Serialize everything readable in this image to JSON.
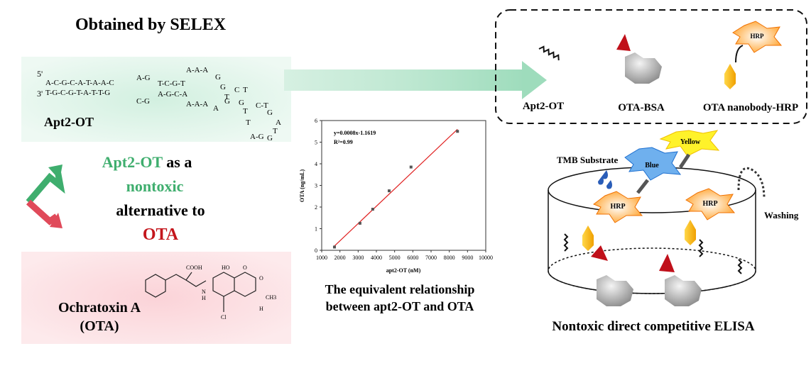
{
  "left": {
    "title": "Obtained by SELEX",
    "aptamer": {
      "five_prime": "5'",
      "three_prime": "3'",
      "fragments": [
        "A-C-G-C-A-T-A-A-C",
        "T-G-C-G-T-A-T-T-G",
        "A-G",
        "T-C-G-T",
        "C-G",
        "A-G-C-A",
        "A-A-A",
        "G",
        "G",
        "T",
        "C",
        "T",
        "A-A-A",
        "A",
        "G",
        "G",
        "C-T",
        "T",
        "T",
        "A",
        "G",
        "T",
        "A-G",
        "G"
      ],
      "label": "Apt2-OT"
    },
    "statement": [
      "Apt2-OT",
      "as a",
      "nontoxic",
      "alternative to",
      "OTA"
    ],
    "toxin": {
      "name": "Ochratoxin A",
      "abbr": "(OTA)",
      "atoms": [
        "COOH",
        "HO",
        "O",
        "O",
        "N",
        "H",
        "Cl",
        "CH3",
        "H"
      ]
    }
  },
  "plot": {
    "equation": "y=0.0008x-1.1619",
    "r2": "R²=0.99",
    "xlabel": "apt2-OT (nM)",
    "ylabel": "OTA (ng/mL)",
    "x": [
      1700,
      3100,
      3800,
      4700,
      5900,
      8450
    ],
    "values": [
      0.15,
      1.25,
      1.9,
      2.75,
      3.85,
      5.5
    ],
    "fit": {
      "slope": 0.0008,
      "intercept": -1.1619,
      "color": "#e02020"
    },
    "xlim": [
      1000,
      10000
    ],
    "ylim": [
      0,
      6
    ],
    "xticks": [
      1000,
      2000,
      3000,
      4000,
      5000,
      6000,
      7000,
      8000,
      9000,
      10000
    ],
    "yticks": [
      0,
      1,
      2,
      3,
      4,
      5,
      6
    ],
    "caption": [
      "The equivalent relationship",
      "between apt2-OT and OTA"
    ]
  },
  "legend_box": {
    "items": [
      "Apt2-OT",
      "OTA-BSA",
      "OTA nanobody-HRP"
    ],
    "hrp": "HRP"
  },
  "elisa": {
    "substrate": "TMB Substrate",
    "blue": "Blue",
    "yellow": "Yellow",
    "hrp": [
      "HRP",
      "HRP"
    ],
    "washing": "Washing",
    "title": "Nontoxic direct competitive ELISA"
  }
}
